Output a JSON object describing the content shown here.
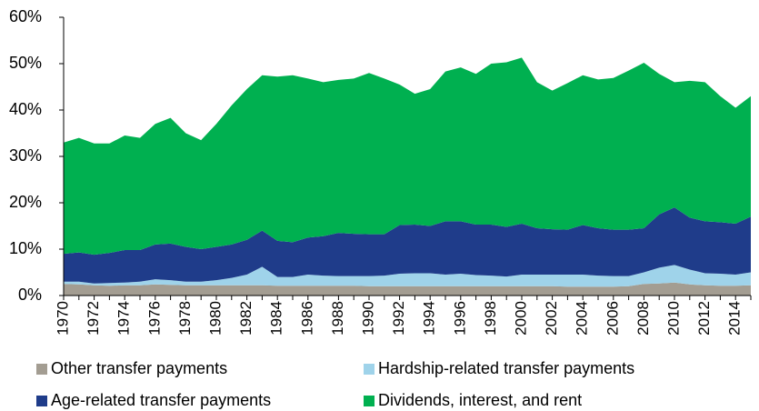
{
  "chart_data": {
    "type": "stacked_area",
    "categories": [
      "1970",
      null,
      "1972",
      null,
      "1974",
      null,
      "1976",
      null,
      "1978",
      null,
      "1980",
      null,
      "1982",
      null,
      "1984",
      null,
      "1986",
      null,
      "1988",
      null,
      "1990",
      null,
      "1992",
      null,
      "1994",
      null,
      "1996",
      null,
      "1998",
      null,
      "2000",
      null,
      "2002",
      null,
      "2004",
      null,
      "2006",
      null,
      "2008",
      null,
      "2010",
      null,
      "2012",
      null,
      "2014",
      null
    ],
    "series": [
      {
        "name": "Other transfer payments",
        "color": "#a39d92",
        "values": [
          2.5,
          2.4,
          2.2,
          2.1,
          2.2,
          2.2,
          2.4,
          2.3,
          2.2,
          2.2,
          2.2,
          2.2,
          2.2,
          2.2,
          2.1,
          2.1,
          2.1,
          2.1,
          2.1,
          2.1,
          2.0,
          2.0,
          2.0,
          2.0,
          2.0,
          2.0,
          2.0,
          2.0,
          2.0,
          2.0,
          2.0,
          2.0,
          2.0,
          1.9,
          1.9,
          1.9,
          1.9,
          2.0,
          2.5,
          2.6,
          2.8,
          2.4,
          2.2,
          2.1,
          2.1,
          2.2
        ]
      },
      {
        "name": "Hardship-related transfer payments",
        "color": "#9fd3ea",
        "values": [
          0.5,
          0.6,
          0.4,
          0.6,
          0.6,
          0.8,
          1.1,
          1,
          0.8,
          0.8,
          1.1,
          1.6,
          2.3,
          4,
          1.9,
          1.9,
          2.4,
          2.2,
          2.1,
          2.1,
          2.2,
          2.3,
          2.7,
          2.8,
          2.8,
          2.5,
          2.7,
          2.4,
          2.3,
          2.1,
          2.5,
          2.5,
          2.5,
          2.6,
          2.6,
          2.4,
          2.3,
          2.2,
          2.5,
          3.4,
          3.8,
          3.2,
          2.6,
          2.6,
          2.4,
          2.8
        ]
      },
      {
        "name": "Age-related transfer payments",
        "color": "#1f3c8a",
        "values": [
          6,
          6.3,
          6.2,
          6.5,
          7,
          6.8,
          7.5,
          7.9,
          7.5,
          7,
          7.2,
          7.2,
          7.5,
          7.8,
          7.8,
          7.5,
          8,
          8.5,
          9.3,
          9.1,
          9,
          8.9,
          10.5,
          10.5,
          10.2,
          11.5,
          11.3,
          10.9,
          11,
          10.7,
          11,
          10,
          9.8,
          9.7,
          10.7,
          10.2,
          10,
          10,
          9.5,
          11.5,
          12.4,
          11.2,
          11.2,
          11.1,
          11,
          12
        ]
      },
      {
        "name": "Dividends, interest, and rent",
        "color": "#00b050",
        "values": [
          24,
          24.7,
          24,
          23.6,
          24.7,
          24.2,
          26,
          27.1,
          24.5,
          23.5,
          26.5,
          30,
          32.5,
          33.5,
          35.4,
          36,
          34.3,
          33.2,
          33,
          33.5,
          34.8,
          33.6,
          30.3,
          28.2,
          29.5,
          32.3,
          33.2,
          32.5,
          34.7,
          35.5,
          35.8,
          31.5,
          29.9,
          31.6,
          32.3,
          32.1,
          32.7,
          34.3,
          35.7,
          30.3,
          27,
          29.5,
          30,
          27.2,
          25,
          26
        ]
      }
    ],
    "ylim": [
      0,
      60
    ],
    "yticks": [
      {
        "value": 0,
        "label": "0%"
      },
      {
        "value": 10,
        "label": "10%"
      },
      {
        "value": 20,
        "label": "20%"
      },
      {
        "value": 30,
        "label": "30%"
      },
      {
        "value": 40,
        "label": "40%"
      },
      {
        "value": 50,
        "label": "50%"
      },
      {
        "value": 60,
        "label": "60%"
      }
    ]
  }
}
